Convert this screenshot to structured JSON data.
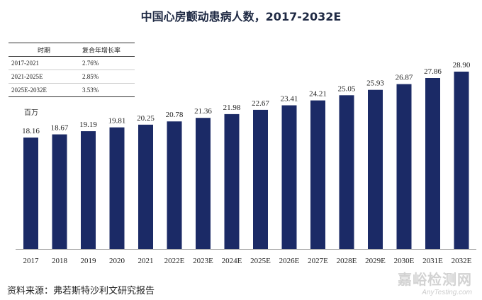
{
  "title": "中国心房颤动患病人数，2017-2032E",
  "unit_label": "百万",
  "cagr_table": {
    "headers": [
      "时期",
      "复合年增长率"
    ],
    "rows": [
      [
        "2017-2021",
        "2.76%"
      ],
      [
        "2021-2025E",
        "2.85%"
      ],
      [
        "2025E-2032E",
        "3.53%"
      ]
    ]
  },
  "source": "资料来源：弗若斯特沙利文研究报告",
  "watermark": {
    "cn": "嘉峪检测网",
    "en": "AnyTesting.com"
  },
  "colors": {
    "bar": "#1b2a66"
  },
  "chart_data": {
    "type": "bar",
    "title": "中国心房颤动患病人数，2017-2032E",
    "ylabel": "百万",
    "categories": [
      "2017",
      "2018",
      "2019",
      "2020",
      "2021",
      "2022E",
      "2023E",
      "2024E",
      "2025E",
      "2026E",
      "2027E",
      "2028E",
      "2029E",
      "2030E",
      "2031E",
      "2032E"
    ],
    "values": [
      18.16,
      18.67,
      19.19,
      19.81,
      20.25,
      20.78,
      21.36,
      21.98,
      22.67,
      23.41,
      24.21,
      25.05,
      25.93,
      26.87,
      27.86,
      28.9
    ],
    "value_labels": [
      "18.16",
      "18.67",
      "19.19",
      "19.81",
      "20.25",
      "20.78",
      "21.36",
      "21.98",
      "22.67",
      "23.41",
      "24.21",
      "25.05",
      "25.93",
      "26.87",
      "27.86",
      "28.90"
    ],
    "ylim": [
      0,
      28.9
    ],
    "grid": false,
    "legend": "none"
  }
}
